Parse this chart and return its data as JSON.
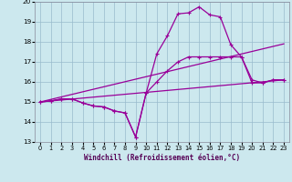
{
  "xlabel": "Windchill (Refroidissement éolien,°C)",
  "xlim": [
    -0.5,
    23.5
  ],
  "ylim": [
    13,
    20
  ],
  "xticks": [
    0,
    1,
    2,
    3,
    4,
    5,
    6,
    7,
    8,
    9,
    10,
    11,
    12,
    13,
    14,
    15,
    16,
    17,
    18,
    19,
    20,
    21,
    22,
    23
  ],
  "yticks": [
    13,
    14,
    15,
    16,
    17,
    18,
    19,
    20
  ],
  "bg_color": "#cce8ee",
  "line_color": "#990099",
  "grid_color": "#99bbcc",
  "line1": {
    "x": [
      0,
      1,
      2,
      3,
      4,
      5,
      6,
      7,
      8,
      9,
      10,
      11,
      12,
      13,
      14,
      15,
      16,
      17,
      18,
      19,
      20,
      21,
      22,
      23
    ],
    "y": [
      15.0,
      15.05,
      15.15,
      15.15,
      14.95,
      14.8,
      14.75,
      14.55,
      14.45,
      13.25,
      15.45,
      17.4,
      18.3,
      19.4,
      19.45,
      19.75,
      19.35,
      19.25,
      17.85,
      17.25,
      15.95,
      15.95,
      16.1,
      16.1
    ]
  },
  "line2": {
    "x": [
      0,
      1,
      2,
      3,
      4,
      5,
      6,
      7,
      8,
      9,
      10,
      11,
      12,
      13,
      14,
      15,
      16,
      17,
      18,
      19,
      20,
      21,
      22,
      23
    ],
    "y": [
      15.0,
      15.05,
      15.15,
      15.15,
      14.95,
      14.8,
      14.75,
      14.55,
      14.45,
      13.25,
      15.45,
      16.0,
      16.55,
      17.0,
      17.25,
      17.25,
      17.25,
      17.25,
      17.25,
      17.25,
      16.1,
      15.95,
      16.1,
      16.1
    ]
  },
  "line3": {
    "x": [
      0,
      23
    ],
    "y": [
      15.0,
      17.9
    ]
  },
  "line4": {
    "x": [
      0,
      23
    ],
    "y": [
      15.0,
      16.1
    ]
  }
}
